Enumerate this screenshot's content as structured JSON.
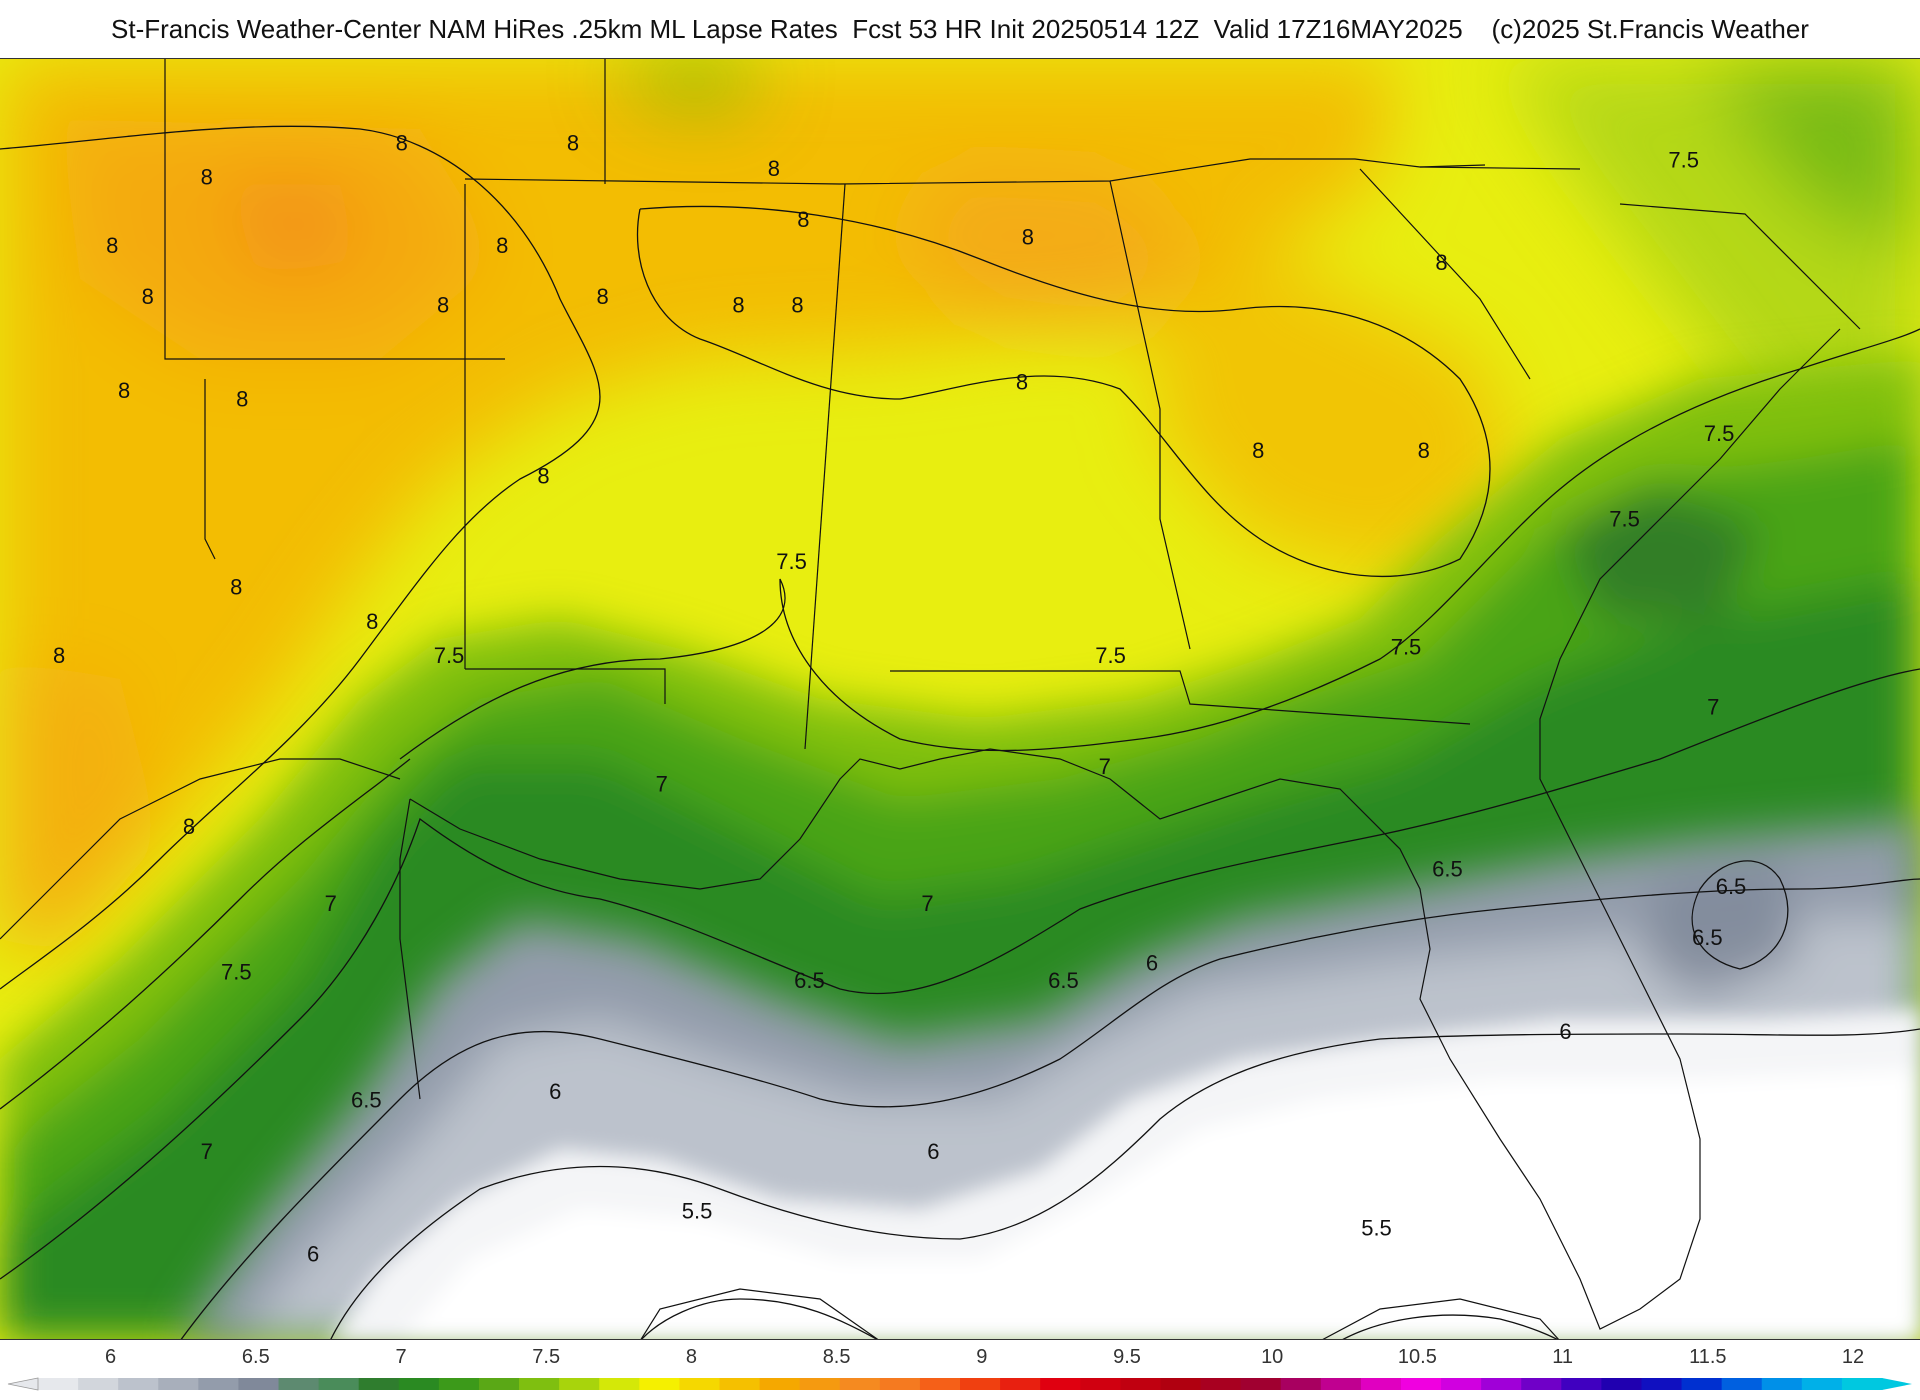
{
  "header": {
    "title": "St-Francis Weather-Center NAM HiRes .25km ML Lapse Rates  Fcst 53 HR Init 20250514 12Z  Valid 17Z16MAY2025    (c)2025 St.Francis Weather"
  },
  "colorbar": {
    "ticks": [
      "6",
      "6.5",
      "7",
      "7.5",
      "8",
      "8.5",
      "9",
      "9.5",
      "10",
      "10.5",
      "11",
      "11.5",
      "12"
    ],
    "min": 5.75,
    "max": 12.1,
    "colors": [
      "#e6e8ec",
      "#d2d6dc",
      "#bcc2cc",
      "#a8afbb",
      "#939cab",
      "#80899a",
      "#5d8a70",
      "#4a8c5a",
      "#2f7d2e",
      "#2a8a22",
      "#3c9a1a",
      "#5aa816",
      "#7fbf10",
      "#a8d40c",
      "#d4e808",
      "#f5f000",
      "#f5d800",
      "#f5c000",
      "#f5a800",
      "#f59a10",
      "#f58a20",
      "#f57a20",
      "#f56018",
      "#f04010",
      "#e82010",
      "#e00010",
      "#d00010",
      "#c00010",
      "#b00010",
      "#a80020",
      "#a00030",
      "#a80060",
      "#c00090",
      "#e000c0",
      "#f000e0",
      "#d000e0",
      "#a000d8",
      "#7000c8",
      "#4000c0",
      "#2000b0",
      "#1010c0",
      "#0030d0",
      "#0060e0",
      "#0090e8",
      "#00b0e8",
      "#00c8e0"
    ]
  },
  "contour_labels": [
    {
      "text": "8",
      "lon": -98.2,
      "lat": 36.8
    },
    {
      "text": "8",
      "lon": -101.5,
      "lat": 36.4
    },
    {
      "text": "8",
      "lon": -103.1,
      "lat": 35.6
    },
    {
      "text": "8",
      "lon": -102.5,
      "lat": 35.0
    },
    {
      "text": "8",
      "lon": -95.3,
      "lat": 36.8
    },
    {
      "text": "8",
      "lon": -96.5,
      "lat": 35.6
    },
    {
      "text": "8",
      "lon": -94.8,
      "lat": 35.0
    },
    {
      "text": "8",
      "lon": -97.5,
      "lat": 34.9
    },
    {
      "text": "8",
      "lon": -91.9,
      "lat": 36.5
    },
    {
      "text": "8",
      "lon": -91.4,
      "lat": 35.9
    },
    {
      "text": "8",
      "lon": -92.5,
      "lat": 34.9
    },
    {
      "text": "8",
      "lon": -91.5,
      "lat": 34.9
    },
    {
      "text": "8",
      "lon": -87.6,
      "lat": 35.7
    },
    {
      "text": "8",
      "lon": -102.9,
      "lat": 33.9
    },
    {
      "text": "8",
      "lon": -100.9,
      "lat": 33.8
    },
    {
      "text": "8",
      "lon": -95.8,
      "lat": 32.9
    },
    {
      "text": "8",
      "lon": -101.0,
      "lat": 31.6
    },
    {
      "text": "8",
      "lon": -98.7,
      "lat": 31.2
    },
    {
      "text": "8",
      "lon": -104.0,
      "lat": 30.8
    },
    {
      "text": "8",
      "lon": -101.8,
      "lat": 28.8
    },
    {
      "text": "8",
      "lon": -87.7,
      "lat": 34.0
    },
    {
      "text": "8",
      "lon": -83.7,
      "lat": 33.2
    },
    {
      "text": "8",
      "lon": -80.9,
      "lat": 33.2
    },
    {
      "text": "8",
      "lon": -80.6,
      "lat": 35.4
    },
    {
      "text": "7.5",
      "lon": -91.6,
      "lat": 31.9
    },
    {
      "text": "7.5",
      "lon": -97.4,
      "lat": 30.8
    },
    {
      "text": "7.5",
      "lon": -86.2,
      "lat": 30.8
    },
    {
      "text": "7.5",
      "lon": -81.2,
      "lat": 30.9
    },
    {
      "text": "7.5",
      "lon": -76.5,
      "lat": 36.6
    },
    {
      "text": "7.5",
      "lon": -75.9,
      "lat": 33.4
    },
    {
      "text": "7.5",
      "lon": -77.5,
      "lat": 32.4
    },
    {
      "text": "7.5",
      "lon": -101.0,
      "lat": 27.1
    },
    {
      "text": "7",
      "lon": -93.8,
      "lat": 29.3
    },
    {
      "text": "7",
      "lon": -86.3,
      "lat": 29.5
    },
    {
      "text": "7",
      "lon": -89.3,
      "lat": 27.9
    },
    {
      "text": "7",
      "lon": -99.4,
      "lat": 27.9
    },
    {
      "text": "7",
      "lon": -76.0,
      "lat": 30.2
    },
    {
      "text": "7",
      "lon": -101.5,
      "lat": 25.0
    },
    {
      "text": "6.5",
      "lon": -80.5,
      "lat": 28.3
    },
    {
      "text": "6.5",
      "lon": -91.3,
      "lat": 27.0
    },
    {
      "text": "6.5",
      "lon": -87.0,
      "lat": 27.0
    },
    {
      "text": "6.5",
      "lon": -75.7,
      "lat": 28.1
    },
    {
      "text": "6.5",
      "lon": -76.1,
      "lat": 27.5
    },
    {
      "text": "6.5",
      "lon": -98.8,
      "lat": 25.6
    },
    {
      "text": "6",
      "lon": -85.5,
      "lat": 27.2
    },
    {
      "text": "6",
      "lon": -78.5,
      "lat": 26.4
    },
    {
      "text": "6",
      "lon": -95.6,
      "lat": 25.7
    },
    {
      "text": "6",
      "lon": -89.2,
      "lat": 25.0
    },
    {
      "text": "6",
      "lon": -99.7,
      "lat": 23.8
    },
    {
      "text": "5.5",
      "lon": -93.2,
      "lat": 24.3
    },
    {
      "text": "5.5",
      "lon": -81.7,
      "lat": 24.1
    }
  ]
}
